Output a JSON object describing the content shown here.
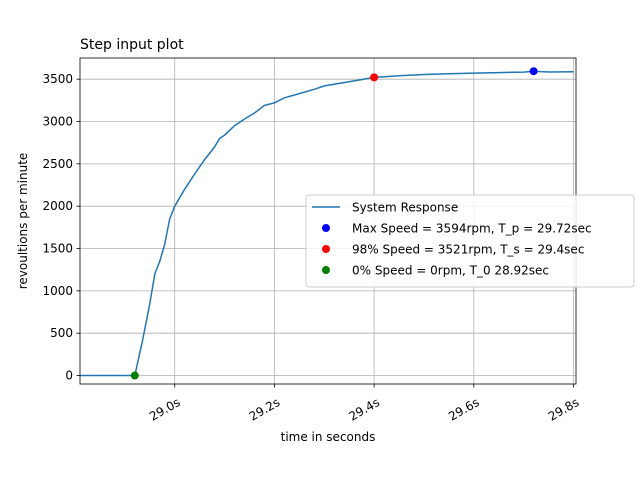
{
  "chart_data": {
    "type": "line",
    "title": "Step input plot",
    "xlabel": "time in seconds",
    "ylabel": "revoultions per minute",
    "xlim": [
      28.81,
      29.805
    ],
    "ylim": [
      -100,
      3750
    ],
    "grid": true,
    "legend_position": "center-right",
    "x_ticks": [
      29.0,
      29.2,
      29.4,
      29.6,
      29.8
    ],
    "x_tick_labels": [
      "29.0s",
      "29.2s",
      "29.4s",
      "29.6s",
      "29.8s"
    ],
    "y_ticks": [
      0,
      500,
      1000,
      1500,
      2000,
      2500,
      3000,
      3500
    ],
    "y_tick_labels": [
      "0",
      "500",
      "1000",
      "1500",
      "2000",
      "2500",
      "3000",
      "3500"
    ],
    "series": [
      {
        "name": "System Response",
        "color": "#1f77b4",
        "x": [
          28.81,
          28.86,
          28.9,
          28.92,
          28.935,
          28.95,
          28.96,
          28.97,
          28.98,
          28.99,
          29.0,
          29.02,
          29.04,
          29.06,
          29.08,
          29.09,
          29.1,
          29.12,
          29.14,
          29.16,
          29.18,
          29.2,
          29.22,
          29.25,
          29.28,
          29.3,
          29.33,
          29.36,
          29.4,
          29.45,
          29.5,
          29.55,
          29.6,
          29.65,
          29.7,
          29.72,
          29.75,
          29.8
        ],
        "y": [
          0,
          0,
          0,
          0,
          400,
          850,
          1200,
          1350,
          1550,
          1850,
          2000,
          2200,
          2380,
          2550,
          2700,
          2800,
          2840,
          2950,
          3030,
          3100,
          3190,
          3220,
          3280,
          3330,
          3380,
          3420,
          3450,
          3480,
          3521,
          3540,
          3555,
          3565,
          3572,
          3578,
          3583,
          3594,
          3585,
          3588
        ]
      }
    ],
    "markers": [
      {
        "name": "Max Speed = 3594rpm, T_p = 29.72sec",
        "x": 29.72,
        "y": 3594,
        "color": "#0000ff"
      },
      {
        "name": "98% Speed = 3521rpm, T_s = 29.4sec",
        "x": 29.4,
        "y": 3521,
        "color": "#ff0000"
      },
      {
        "name": "0% Speed = 0rpm, T_0 28.92sec",
        "x": 28.92,
        "y": 0,
        "color": "#008000"
      }
    ]
  }
}
